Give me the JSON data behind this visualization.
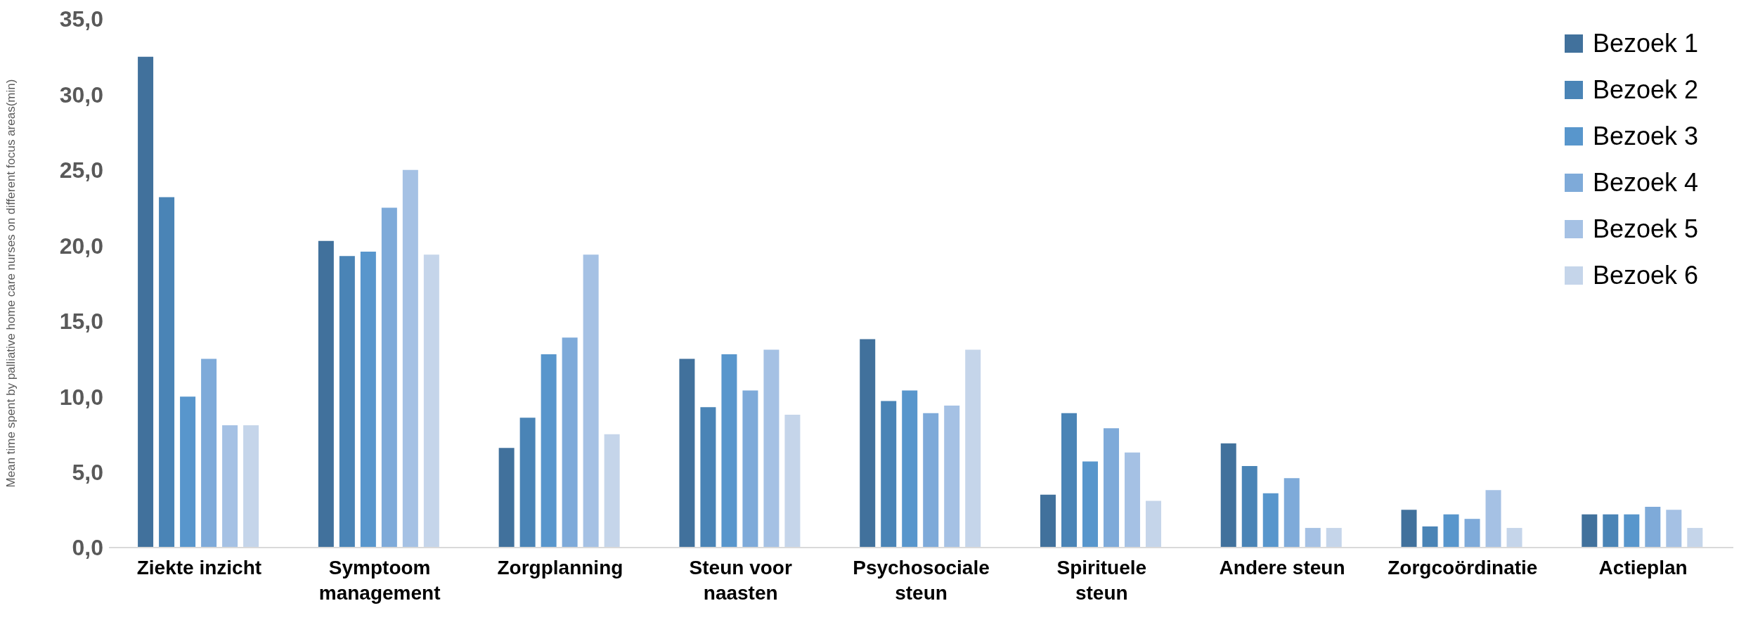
{
  "chart_data": {
    "type": "bar",
    "ylabel": "Mean time spent by palliative home care nurses on different focus areas(min)",
    "categories": [
      "Ziekte inzicht",
      "Symptoom management",
      "Zorgplanning",
      "Steun voor naasten",
      "Psychosociale steun",
      "Spirituele steun",
      "Andere steun",
      "Zorgcoördinatie",
      "Actieplan"
    ],
    "series": [
      {
        "name": "Bezoek 1",
        "color": "#41719c",
        "values": [
          32.5,
          20.3,
          6.6,
          12.5,
          13.8,
          3.5,
          6.9,
          2.5,
          2.2
        ]
      },
      {
        "name": "Bezoek 2",
        "color": "#4a84b6",
        "values": [
          23.2,
          19.3,
          8.6,
          9.3,
          9.7,
          8.9,
          5.4,
          1.4,
          2.2
        ]
      },
      {
        "name": "Bezoek 3",
        "color": "#5896cc",
        "values": [
          10.0,
          19.6,
          12.8,
          12.8,
          10.4,
          5.7,
          3.6,
          2.2,
          2.2
        ]
      },
      {
        "name": "Bezoek 4",
        "color": "#7eaad9",
        "values": [
          12.5,
          22.5,
          13.9,
          10.4,
          8.9,
          7.9,
          4.6,
          1.9,
          2.7
        ]
      },
      {
        "name": "Bezoek 5",
        "color": "#a5c1e4",
        "values": [
          8.1,
          25.0,
          19.4,
          13.1,
          9.4,
          6.3,
          1.3,
          3.8,
          2.5
        ]
      },
      {
        "name": "Bezoek 6",
        "color": "#c5d5ea",
        "values": [
          8.1,
          19.4,
          7.5,
          8.8,
          13.1,
          3.1,
          1.3,
          1.3,
          1.3
        ]
      }
    ],
    "ylim": [
      0,
      35
    ],
    "yticks": [
      {
        "value": 0,
        "label": "0,0"
      },
      {
        "value": 5,
        "label": "5,0"
      },
      {
        "value": 10,
        "label": "10,0"
      },
      {
        "value": 15,
        "label": "15,0"
      },
      {
        "value": 20,
        "label": "20,0"
      },
      {
        "value": 25,
        "label": "25,0"
      },
      {
        "value": 30,
        "label": "30,0"
      },
      {
        "value": 35,
        "label": "35,0"
      }
    ],
    "grid": false,
    "legend": "top right"
  }
}
